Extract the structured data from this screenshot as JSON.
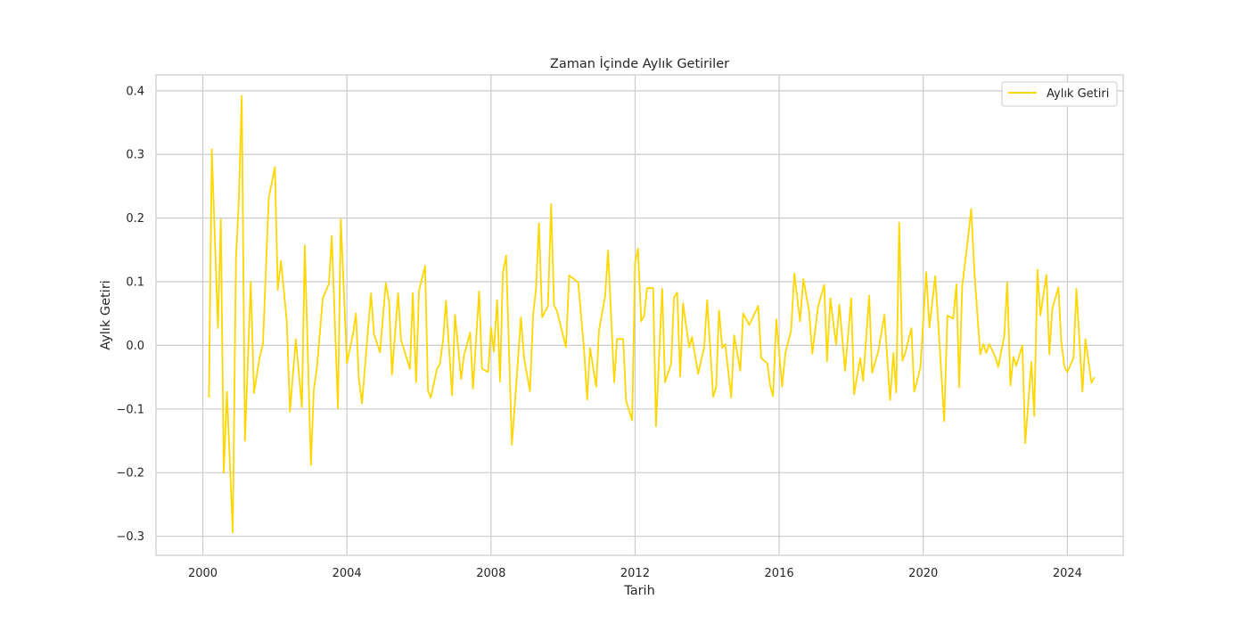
{
  "chart_data": {
    "type": "line",
    "title": "Zaman İçinde Aylık Getiriler",
    "xlabel": "Tarih",
    "ylabel": "Aylık Getiri",
    "xlim": [
      1998.7,
      2025.55
    ],
    "ylim": [
      -0.33,
      0.425
    ],
    "x_ticks": [
      2000,
      2004,
      2008,
      2012,
      2016,
      2020,
      2024
    ],
    "x_tick_labels": [
      "2000",
      "2004",
      "2008",
      "2012",
      "2016",
      "2020",
      "2024"
    ],
    "y_ticks": [
      -0.3,
      -0.2,
      -0.1,
      0.0,
      0.1,
      0.2,
      0.3,
      0.4
    ],
    "y_tick_labels": [
      "−0.3",
      "−0.2",
      "−0.1",
      "0.0",
      "0.1",
      "0.2",
      "0.3",
      "0.4"
    ],
    "grid": true,
    "legend_position": "top-right",
    "series": [
      {
        "name": "Aylık Getiri",
        "color": "#FFD700",
        "points": [
          [
            2000.17,
            -0.082
          ],
          [
            2000.25,
            0.308
          ],
          [
            2000.42,
            0.027
          ],
          [
            2000.5,
            0.198
          ],
          [
            2000.58,
            -0.2
          ],
          [
            2000.67,
            -0.073
          ],
          [
            2000.83,
            -0.294
          ],
          [
            2000.92,
            0.135
          ],
          [
            2001.0,
            0.228
          ],
          [
            2001.08,
            0.392
          ],
          [
            2001.17,
            -0.15
          ],
          [
            2001.33,
            0.1
          ],
          [
            2001.42,
            -0.075
          ],
          [
            2001.58,
            -0.018
          ],
          [
            2001.67,
            0.003
          ],
          [
            2001.83,
            0.232
          ],
          [
            2002.0,
            0.28
          ],
          [
            2002.08,
            0.087
          ],
          [
            2002.17,
            0.133
          ],
          [
            2002.33,
            0.038
          ],
          [
            2002.42,
            -0.104
          ],
          [
            2002.58,
            0.01
          ],
          [
            2002.75,
            -0.097
          ],
          [
            2002.83,
            0.157
          ],
          [
            2003.0,
            -0.188
          ],
          [
            2003.08,
            -0.07
          ],
          [
            2003.17,
            -0.034
          ],
          [
            2003.33,
            0.074
          ],
          [
            2003.5,
            0.097
          ],
          [
            2003.58,
            0.172
          ],
          [
            2003.75,
            -0.099
          ],
          [
            2003.83,
            0.198
          ],
          [
            2004.0,
            -0.028
          ],
          [
            2004.17,
            0.018
          ],
          [
            2004.25,
            0.05
          ],
          [
            2004.33,
            -0.052
          ],
          [
            2004.42,
            -0.091
          ],
          [
            2004.67,
            0.082
          ],
          [
            2004.75,
            0.018
          ],
          [
            2004.92,
            -0.011
          ],
          [
            2005.08,
            0.098
          ],
          [
            2005.17,
            0.068
          ],
          [
            2005.25,
            -0.046
          ],
          [
            2005.42,
            0.082
          ],
          [
            2005.5,
            0.009
          ],
          [
            2005.75,
            -0.037
          ],
          [
            2005.83,
            0.082
          ],
          [
            2005.92,
            -0.058
          ],
          [
            2006.0,
            0.086
          ],
          [
            2006.17,
            0.125
          ],
          [
            2006.25,
            -0.071
          ],
          [
            2006.33,
            -0.082
          ],
          [
            2006.5,
            -0.037
          ],
          [
            2006.58,
            -0.03
          ],
          [
            2006.67,
            0.009
          ],
          [
            2006.75,
            0.07
          ],
          [
            2006.92,
            -0.079
          ],
          [
            2007.0,
            0.048
          ],
          [
            2007.17,
            -0.053
          ],
          [
            2007.25,
            -0.016
          ],
          [
            2007.42,
            0.02
          ],
          [
            2007.5,
            -0.068
          ],
          [
            2007.67,
            0.085
          ],
          [
            2007.75,
            -0.037
          ],
          [
            2007.92,
            -0.042
          ],
          [
            2008.0,
            0.028
          ],
          [
            2008.08,
            -0.01
          ],
          [
            2008.17,
            0.071
          ],
          [
            2008.25,
            -0.057
          ],
          [
            2008.33,
            0.114
          ],
          [
            2008.42,
            0.141
          ],
          [
            2008.58,
            -0.156
          ],
          [
            2008.67,
            -0.085
          ],
          [
            2008.83,
            0.044
          ],
          [
            2008.92,
            -0.021
          ],
          [
            2009.08,
            -0.072
          ],
          [
            2009.17,
            0.049
          ],
          [
            2009.25,
            0.089
          ],
          [
            2009.33,
            0.192
          ],
          [
            2009.42,
            0.044
          ],
          [
            2009.58,
            0.062
          ],
          [
            2009.67,
            0.222
          ],
          [
            2009.75,
            0.063
          ],
          [
            2009.83,
            0.054
          ],
          [
            2010.08,
            -0.003
          ],
          [
            2010.17,
            0.11
          ],
          [
            2010.42,
            0.099
          ],
          [
            2010.58,
            -0.005
          ],
          [
            2010.67,
            -0.085
          ],
          [
            2010.75,
            -0.004
          ],
          [
            2010.92,
            -0.065
          ],
          [
            2011.0,
            0.024
          ],
          [
            2011.17,
            0.078
          ],
          [
            2011.25,
            0.149
          ],
          [
            2011.42,
            -0.058
          ],
          [
            2011.5,
            0.01
          ],
          [
            2011.67,
            0.01
          ],
          [
            2011.75,
            -0.087
          ],
          [
            2011.92,
            -0.118
          ],
          [
            2012.0,
            0.13
          ],
          [
            2012.08,
            0.152
          ],
          [
            2012.17,
            0.038
          ],
          [
            2012.25,
            0.046
          ],
          [
            2012.33,
            0.09
          ],
          [
            2012.5,
            0.09
          ],
          [
            2012.58,
            -0.127
          ],
          [
            2012.75,
            0.089
          ],
          [
            2012.83,
            -0.058
          ],
          [
            2013.0,
            -0.029
          ],
          [
            2013.08,
            0.075
          ],
          [
            2013.17,
            0.083
          ],
          [
            2013.25,
            -0.049
          ],
          [
            2013.33,
            0.066
          ],
          [
            2013.5,
            -0.003
          ],
          [
            2013.58,
            0.013
          ],
          [
            2013.75,
            -0.045
          ],
          [
            2013.92,
            -0.002
          ],
          [
            2014.0,
            0.071
          ],
          [
            2014.17,
            -0.081
          ],
          [
            2014.25,
            -0.066
          ],
          [
            2014.33,
            0.055
          ],
          [
            2014.42,
            -0.004
          ],
          [
            2014.5,
            0.002
          ],
          [
            2014.67,
            -0.082
          ],
          [
            2014.75,
            0.016
          ],
          [
            2014.92,
            -0.04
          ],
          [
            2015.0,
            0.05
          ],
          [
            2015.17,
            0.032
          ],
          [
            2015.42,
            0.062
          ],
          [
            2015.5,
            -0.02
          ],
          [
            2015.67,
            -0.028
          ],
          [
            2015.75,
            -0.063
          ],
          [
            2015.83,
            -0.08
          ],
          [
            2015.92,
            0.041
          ],
          [
            2016.08,
            -0.065
          ],
          [
            2016.17,
            -0.012
          ],
          [
            2016.33,
            0.023
          ],
          [
            2016.42,
            0.113
          ],
          [
            2016.58,
            0.038
          ],
          [
            2016.67,
            0.104
          ],
          [
            2016.83,
            0.054
          ],
          [
            2016.92,
            -0.013
          ],
          [
            2017.08,
            0.061
          ],
          [
            2017.25,
            0.095
          ],
          [
            2017.33,
            -0.025
          ],
          [
            2017.42,
            0.074
          ],
          [
            2017.58,
            0.001
          ],
          [
            2017.67,
            0.064
          ],
          [
            2017.83,
            -0.04
          ],
          [
            2018.0,
            0.074
          ],
          [
            2018.08,
            -0.077
          ],
          [
            2018.25,
            -0.02
          ],
          [
            2018.33,
            -0.056
          ],
          [
            2018.5,
            0.078
          ],
          [
            2018.58,
            -0.043
          ],
          [
            2018.75,
            -0.01
          ],
          [
            2018.92,
            0.048
          ],
          [
            2019.08,
            -0.086
          ],
          [
            2019.17,
            -0.012
          ],
          [
            2019.25,
            -0.074
          ],
          [
            2019.33,
            0.193
          ],
          [
            2019.42,
            -0.024
          ],
          [
            2019.5,
            -0.012
          ],
          [
            2019.67,
            0.027
          ],
          [
            2019.75,
            -0.073
          ],
          [
            2019.92,
            -0.035
          ],
          [
            2020.08,
            0.115
          ],
          [
            2020.17,
            0.028
          ],
          [
            2020.33,
            0.109
          ],
          [
            2020.42,
            0.032
          ],
          [
            2020.58,
            -0.119
          ],
          [
            2020.67,
            0.047
          ],
          [
            2020.83,
            0.042
          ],
          [
            2020.92,
            0.096
          ],
          [
            2021.0,
            -0.066
          ],
          [
            2021.08,
            0.093
          ],
          [
            2021.25,
            0.172
          ],
          [
            2021.33,
            0.214
          ],
          [
            2021.42,
            0.115
          ],
          [
            2021.58,
            -0.014
          ],
          [
            2021.67,
            0.002
          ],
          [
            2021.75,
            -0.012
          ],
          [
            2021.83,
            0.002
          ],
          [
            2022.0,
            -0.018
          ],
          [
            2022.08,
            -0.034
          ],
          [
            2022.25,
            0.015
          ],
          [
            2022.33,
            0.099
          ],
          [
            2022.42,
            -0.063
          ],
          [
            2022.5,
            -0.018
          ],
          [
            2022.58,
            -0.032
          ],
          [
            2022.75,
            0.0
          ],
          [
            2022.83,
            -0.154
          ],
          [
            2023.0,
            -0.026
          ],
          [
            2023.08,
            -0.111
          ],
          [
            2023.17,
            0.119
          ],
          [
            2023.25,
            0.047
          ],
          [
            2023.42,
            0.111
          ],
          [
            2023.5,
            -0.014
          ],
          [
            2023.58,
            0.057
          ],
          [
            2023.75,
            0.091
          ],
          [
            2023.83,
            0.007
          ],
          [
            2023.92,
            -0.034
          ],
          [
            2024.0,
            -0.042
          ],
          [
            2024.17,
            -0.02
          ],
          [
            2024.25,
            0.089
          ],
          [
            2024.42,
            -0.073
          ],
          [
            2024.5,
            0.01
          ],
          [
            2024.67,
            -0.059
          ],
          [
            2024.75,
            -0.05
          ]
        ]
      }
    ]
  }
}
